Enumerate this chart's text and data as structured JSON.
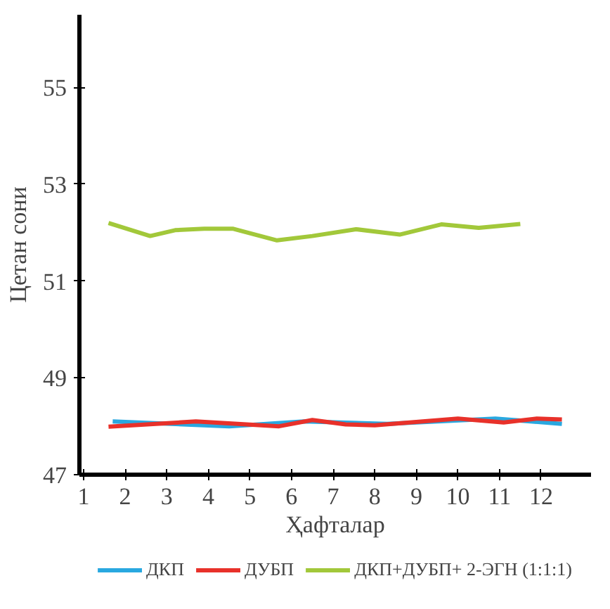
{
  "chart_data": {
    "type": "line",
    "xlabel": "Ҳафталар",
    "ylabel": "Цетан сони",
    "xlim": [
      0.9,
      13.2
    ],
    "ylim": [
      47,
      56.5
    ],
    "xticks": [
      1,
      2,
      3,
      4,
      5,
      6,
      7,
      8,
      9,
      10,
      11,
      12
    ],
    "yticks": [
      47,
      49,
      51,
      53,
      55
    ],
    "grid": false,
    "legend": "bottom",
    "line_style": "solid",
    "marker": "none",
    "series": [
      {
        "name": "ДКП",
        "color": "#29a8e0",
        "x": [
          1.7,
          4.5,
          6.3,
          8.3,
          10.9,
          12.5
        ],
        "values": [
          48.1,
          48.0,
          48.1,
          48.05,
          48.16,
          48.05
        ]
      },
      {
        "name": "ДУБП",
        "color": "#e8312a",
        "x": [
          1.6,
          3.7,
          5.7,
          6.5,
          7.3,
          8.0,
          10.0,
          11.1,
          11.9,
          12.5
        ],
        "values": [
          47.99,
          48.1,
          48.0,
          48.13,
          48.04,
          48.02,
          48.16,
          48.08,
          48.16,
          48.14
        ]
      },
      {
        "name": "ДКП+ДУБП+ 2-ЭГН (1:1:1)",
        "color": "#a2c83a",
        "x": [
          1.6,
          2.6,
          3.2,
          3.9,
          4.6,
          5.65,
          6.5,
          7.55,
          8.6,
          9.6,
          10.5,
          11.5
        ],
        "values": [
          52.2,
          51.93,
          52.05,
          52.08,
          52.08,
          51.84,
          51.93,
          52.07,
          51.96,
          52.17,
          52.1,
          52.18
        ]
      }
    ]
  }
}
